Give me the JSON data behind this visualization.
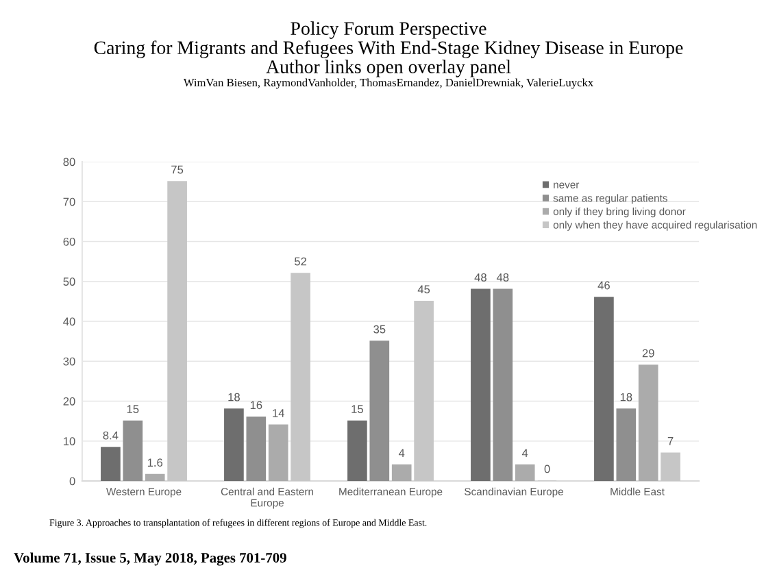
{
  "chart_data": {
    "type": "bar",
    "title": "Policy Forum Perspective",
    "subtitle": "Caring for Migrants and Refugees With End-Stage Kidney Disease in Europe",
    "annotations": [
      "Author links open overlay panel",
      "WimVan Biesen, RaymondVanholder, ThomasErnandez, DanielDrewniak, ValerieLuyckx",
      "Figure 3. Approaches to transplantation of refugees in different regions of Europe and Middle East.",
      "Volume 71, Issue 5, May 2018, Pages 701-709"
    ],
    "categories": [
      "Western Europe",
      "Central and Eastern Europe",
      "Mediterranean Europe",
      "Scandinavian Europe",
      "Middle East"
    ],
    "series": [
      {
        "name": "never",
        "color": "#6e6e6e",
        "values": [
          8.4,
          18,
          15,
          48,
          46
        ]
      },
      {
        "name": "same as regular patients",
        "color": "#8f8f8f",
        "values": [
          15,
          16,
          35,
          48,
          18
        ]
      },
      {
        "name": "only if they bring living donor",
        "color": "#ababab",
        "values": [
          1.6,
          14,
          4,
          4,
          29
        ]
      },
      {
        "name": "only when they have acquired regularisation",
        "color": "#c6c6c6",
        "values": [
          75,
          52,
          45,
          0,
          7
        ]
      }
    ],
    "ylim": [
      0,
      80
    ],
    "yticks": [
      0,
      10,
      20,
      30,
      40,
      50,
      60,
      70,
      80
    ],
    "grid": "y",
    "legend": "top right",
    "data_labels": true
  }
}
